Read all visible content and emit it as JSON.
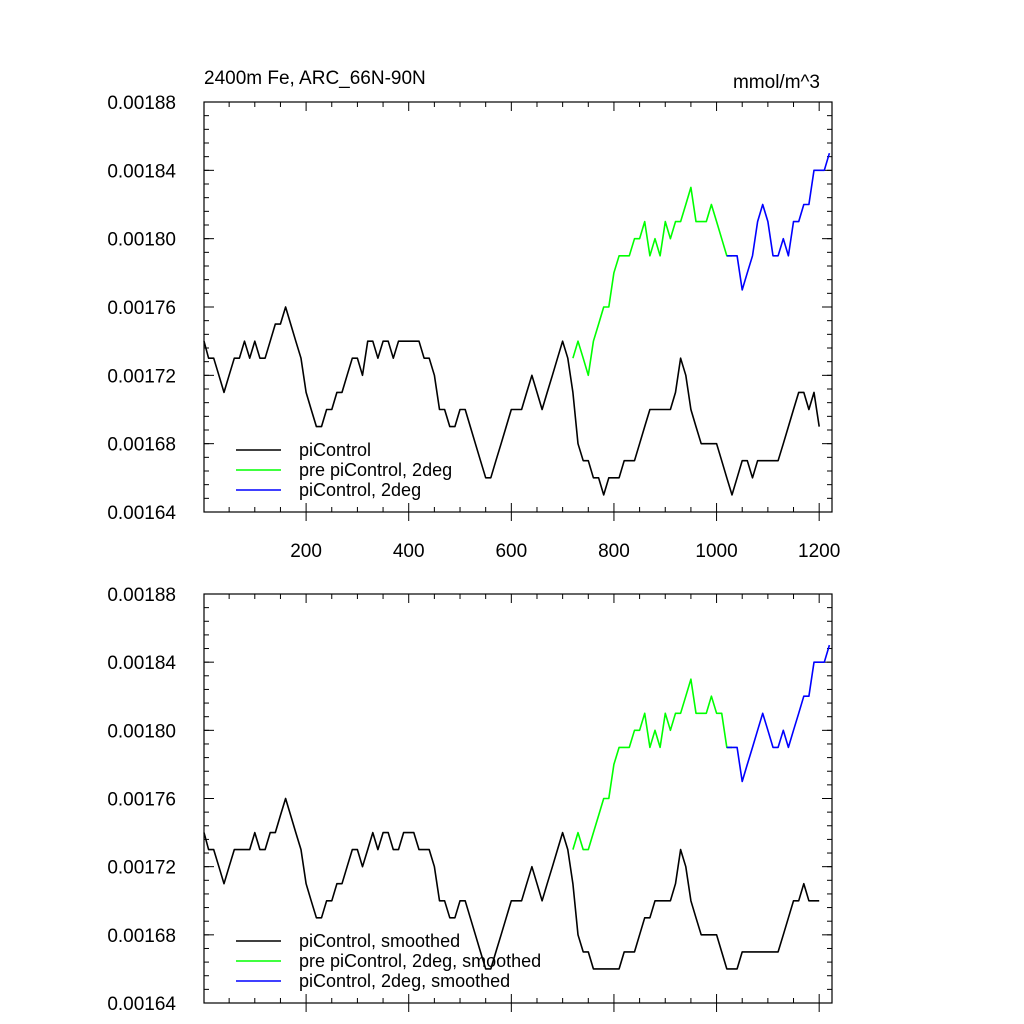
{
  "header": {
    "title": "2400m Fe, ARC_66N-90N",
    "units": "mmol/m^3"
  },
  "colors": {
    "piControl": "#000000",
    "pre_piControl_2deg": "#00ff00",
    "piControl_2deg": "#0000ff"
  },
  "chart_data": [
    {
      "type": "line",
      "panel": "top",
      "xlim": [
        1,
        1225
      ],
      "ylim": [
        0.00164,
        0.00188
      ],
      "x_ticks": [
        200,
        400,
        600,
        800,
        1000,
        1200
      ],
      "x_tick_labels": [
        "200",
        "400",
        "600",
        "800",
        "1000",
        "1200"
      ],
      "y_ticks": [
        0.00164,
        0.00168,
        0.00172,
        0.00176,
        0.0018,
        0.00184,
        0.00188
      ],
      "y_tick_labels": [
        "0.00164",
        "0.00168",
        "0.00172",
        "0.00176",
        "0.00180",
        "0.00184",
        "0.00188"
      ],
      "legend_position": "bottom-left",
      "series": [
        {
          "name": "piControl",
          "color": "#000000",
          "x": [
            1,
            10,
            20,
            30,
            40,
            50,
            60,
            70,
            80,
            90,
            100,
            110,
            120,
            130,
            140,
            150,
            160,
            170,
            180,
            190,
            200,
            210,
            220,
            230,
            240,
            250,
            260,
            270,
            280,
            290,
            300,
            310,
            320,
            330,
            340,
            350,
            360,
            370,
            380,
            390,
            400,
            410,
            420,
            430,
            440,
            450,
            460,
            470,
            480,
            490,
            500,
            510,
            520,
            530,
            540,
            550,
            560,
            570,
            580,
            590,
            600,
            610,
            620,
            630,
            640,
            650,
            660,
            670,
            680,
            690,
            700,
            710,
            720,
            730,
            740,
            750,
            760,
            770,
            780,
            790,
            800,
            810,
            820,
            830,
            840,
            850,
            860,
            870,
            880,
            890,
            900,
            910,
            920,
            930,
            940,
            950,
            960,
            970,
            980,
            990,
            1000,
            1010,
            1020,
            1030,
            1040,
            1050,
            1060,
            1070,
            1080,
            1090,
            1100,
            1110,
            1120,
            1130,
            1140,
            1150,
            1160,
            1170,
            1180,
            1190,
            1200
          ],
          "y": [
            0.00174,
            0.00173,
            0.00173,
            0.00172,
            0.00171,
            0.00172,
            0.00173,
            0.00173,
            0.00174,
            0.00173,
            0.00174,
            0.00173,
            0.00173,
            0.00174,
            0.00175,
            0.00175,
            0.00176,
            0.00175,
            0.00174,
            0.00173,
            0.00171,
            0.0017,
            0.00169,
            0.00169,
            0.0017,
            0.0017,
            0.00171,
            0.00171,
            0.00172,
            0.00173,
            0.00173,
            0.00172,
            0.00174,
            0.00174,
            0.00173,
            0.00174,
            0.00174,
            0.00173,
            0.00174,
            0.00174,
            0.00174,
            0.00174,
            0.00174,
            0.00173,
            0.00173,
            0.00172,
            0.0017,
            0.0017,
            0.00169,
            0.00169,
            0.0017,
            0.0017,
            0.00169,
            0.00168,
            0.00167,
            0.00166,
            0.00166,
            0.00167,
            0.00168,
            0.00169,
            0.0017,
            0.0017,
            0.0017,
            0.00171,
            0.00172,
            0.00171,
            0.0017,
            0.00171,
            0.00172,
            0.00173,
            0.00174,
            0.00173,
            0.00171,
            0.00168,
            0.00167,
            0.00167,
            0.00166,
            0.00166,
            0.00165,
            0.00166,
            0.00166,
            0.00166,
            0.00167,
            0.00167,
            0.00167,
            0.00168,
            0.00169,
            0.0017,
            0.0017,
            0.0017,
            0.0017,
            0.0017,
            0.00171,
            0.00173,
            0.00172,
            0.0017,
            0.00169,
            0.00168,
            0.00168,
            0.00168,
            0.00168,
            0.00167,
            0.00166,
            0.00165,
            0.00166,
            0.00167,
            0.00167,
            0.00166,
            0.00167,
            0.00167,
            0.00167,
            0.00167,
            0.00167,
            0.00168,
            0.00169,
            0.0017,
            0.00171,
            0.00171,
            0.0017,
            0.00171,
            0.00169
          ]
        },
        {
          "name": "pre piControl, 2deg",
          "color": "#00ff00",
          "x": [
            720,
            730,
            740,
            750,
            760,
            770,
            780,
            790,
            800,
            810,
            820,
            830,
            840,
            850,
            860,
            870,
            880,
            890,
            900,
            910,
            920,
            930,
            940,
            950,
            960,
            970,
            980,
            990,
            1000,
            1010,
            1020,
            1030
          ],
          "y": [
            0.00173,
            0.00174,
            0.00173,
            0.00172,
            0.00174,
            0.00175,
            0.00176,
            0.00176,
            0.00178,
            0.00179,
            0.00179,
            0.00179,
            0.0018,
            0.0018,
            0.00181,
            0.00179,
            0.0018,
            0.00179,
            0.00181,
            0.0018,
            0.00181,
            0.00181,
            0.00182,
            0.00183,
            0.00181,
            0.00181,
            0.00181,
            0.00182,
            0.00181,
            0.0018,
            0.00179,
            0.00179
          ]
        },
        {
          "name": "piControl, 2deg",
          "color": "#0000ff",
          "x": [
            1020,
            1030,
            1040,
            1050,
            1060,
            1070,
            1080,
            1090,
            1100,
            1110,
            1120,
            1130,
            1140,
            1150,
            1160,
            1170,
            1180,
            1190,
            1200,
            1210,
            1220
          ],
          "y": [
            0.00179,
            0.00179,
            0.00179,
            0.00177,
            0.00178,
            0.00179,
            0.00181,
            0.00182,
            0.00181,
            0.00179,
            0.00179,
            0.0018,
            0.00179,
            0.00181,
            0.00181,
            0.00182,
            0.00182,
            0.00184,
            0.00184,
            0.00184,
            0.00185
          ]
        }
      ]
    },
    {
      "type": "line",
      "panel": "bottom",
      "xlim": [
        1,
        1225
      ],
      "ylim": [
        0.00164,
        0.00188
      ],
      "x_ticks": [
        200,
        400,
        600,
        800,
        1000,
        1200
      ],
      "x_tick_labels": [],
      "y_ticks": [
        0.00164,
        0.00168,
        0.00172,
        0.00176,
        0.0018,
        0.00184,
        0.00188
      ],
      "y_tick_labels": [
        "0.00164",
        "0.00168",
        "0.00172",
        "0.00176",
        "0.00180",
        "0.00184",
        "0.00188"
      ],
      "legend_position": "bottom-left",
      "series": [
        {
          "name": "piControl, smoothed",
          "color": "#000000",
          "x": [
            1,
            10,
            20,
            30,
            40,
            50,
            60,
            70,
            80,
            90,
            100,
            110,
            120,
            130,
            140,
            150,
            160,
            170,
            180,
            190,
            200,
            210,
            220,
            230,
            240,
            250,
            260,
            270,
            280,
            290,
            300,
            310,
            320,
            330,
            340,
            350,
            360,
            370,
            380,
            390,
            400,
            410,
            420,
            430,
            440,
            450,
            460,
            470,
            480,
            490,
            500,
            510,
            520,
            530,
            540,
            550,
            560,
            570,
            580,
            590,
            600,
            610,
            620,
            630,
            640,
            650,
            660,
            670,
            680,
            690,
            700,
            710,
            720,
            730,
            740,
            750,
            760,
            770,
            780,
            790,
            800,
            810,
            820,
            830,
            840,
            850,
            860,
            870,
            880,
            890,
            900,
            910,
            920,
            930,
            940,
            950,
            960,
            970,
            980,
            990,
            1000,
            1010,
            1020,
            1030,
            1040,
            1050,
            1060,
            1070,
            1080,
            1090,
            1100,
            1110,
            1120,
            1130,
            1140,
            1150,
            1160,
            1170,
            1180,
            1190,
            1200
          ],
          "y": [
            0.00174,
            0.00173,
            0.00173,
            0.00172,
            0.00171,
            0.00172,
            0.00173,
            0.00173,
            0.00173,
            0.00173,
            0.00174,
            0.00173,
            0.00173,
            0.00174,
            0.00174,
            0.00175,
            0.00176,
            0.00175,
            0.00174,
            0.00173,
            0.00171,
            0.0017,
            0.00169,
            0.00169,
            0.0017,
            0.0017,
            0.00171,
            0.00171,
            0.00172,
            0.00173,
            0.00173,
            0.00172,
            0.00173,
            0.00174,
            0.00173,
            0.00174,
            0.00174,
            0.00173,
            0.00173,
            0.00174,
            0.00174,
            0.00174,
            0.00173,
            0.00173,
            0.00173,
            0.00172,
            0.0017,
            0.0017,
            0.00169,
            0.00169,
            0.0017,
            0.0017,
            0.00169,
            0.00168,
            0.00167,
            0.00166,
            0.00166,
            0.00167,
            0.00168,
            0.00169,
            0.0017,
            0.0017,
            0.0017,
            0.00171,
            0.00172,
            0.00171,
            0.0017,
            0.00171,
            0.00172,
            0.00173,
            0.00174,
            0.00173,
            0.00171,
            0.00168,
            0.00167,
            0.00167,
            0.00166,
            0.00166,
            0.00166,
            0.00166,
            0.00166,
            0.00166,
            0.00167,
            0.00167,
            0.00167,
            0.00168,
            0.00169,
            0.00169,
            0.0017,
            0.0017,
            0.0017,
            0.0017,
            0.00171,
            0.00173,
            0.00172,
            0.0017,
            0.00169,
            0.00168,
            0.00168,
            0.00168,
            0.00168,
            0.00167,
            0.00166,
            0.00166,
            0.00166,
            0.00167,
            0.00167,
            0.00167,
            0.00167,
            0.00167,
            0.00167,
            0.00167,
            0.00167,
            0.00168,
            0.00169,
            0.0017,
            0.0017,
            0.00171,
            0.0017,
            0.0017,
            0.0017
          ]
        },
        {
          "name": "pre piControl, 2deg, smoothed",
          "color": "#00ff00",
          "x": [
            720,
            730,
            740,
            750,
            760,
            770,
            780,
            790,
            800,
            810,
            820,
            830,
            840,
            850,
            860,
            870,
            880,
            890,
            900,
            910,
            920,
            930,
            940,
            950,
            960,
            970,
            980,
            990,
            1000,
            1010,
            1020,
            1030
          ],
          "y": [
            0.00173,
            0.00174,
            0.00173,
            0.00173,
            0.00174,
            0.00175,
            0.00176,
            0.00176,
            0.00178,
            0.00179,
            0.00179,
            0.00179,
            0.0018,
            0.0018,
            0.00181,
            0.00179,
            0.0018,
            0.00179,
            0.00181,
            0.0018,
            0.00181,
            0.00181,
            0.00182,
            0.00183,
            0.00181,
            0.00181,
            0.00181,
            0.00182,
            0.00181,
            0.00181,
            0.00179,
            0.00179
          ]
        },
        {
          "name": "piControl, 2deg, smoothed",
          "color": "#0000ff",
          "x": [
            1020,
            1030,
            1040,
            1050,
            1060,
            1070,
            1080,
            1090,
            1100,
            1110,
            1120,
            1130,
            1140,
            1150,
            1160,
            1170,
            1180,
            1190,
            1200,
            1210,
            1220
          ],
          "y": [
            0.00179,
            0.00179,
            0.00179,
            0.00177,
            0.00178,
            0.00179,
            0.0018,
            0.00181,
            0.0018,
            0.00179,
            0.00179,
            0.0018,
            0.00179,
            0.0018,
            0.00181,
            0.00182,
            0.00182,
            0.00184,
            0.00184,
            0.00184,
            0.00185
          ]
        }
      ]
    }
  ]
}
